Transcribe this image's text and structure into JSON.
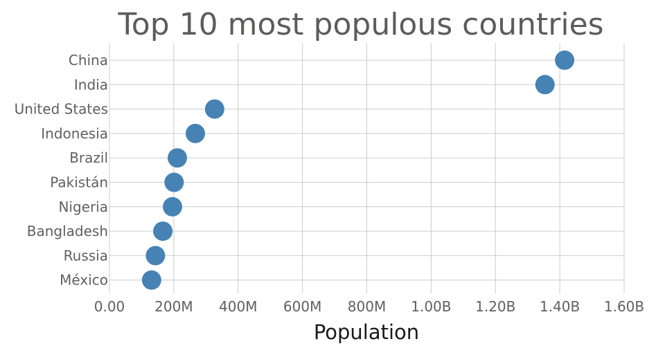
{
  "chart_data": {
    "type": "scatter",
    "title": "Top 10 most populous countries",
    "xlabel": "Population",
    "ylabel": "",
    "xlim": [
      0,
      1600000000
    ],
    "x_ticks": [
      0,
      200000000,
      400000000,
      600000000,
      800000000,
      1000000000,
      1200000000,
      1400000000,
      1600000000
    ],
    "x_tick_labels": [
      "0.00",
      "200M",
      "400M",
      "600M",
      "800M",
      "1.00B",
      "1.20B",
      "1.40B",
      "1.60B"
    ],
    "grid": true,
    "legend": "none",
    "marker_color": "#4682b4",
    "categories": [
      "China",
      "India",
      "United States",
      "Indonesia",
      "Brazil",
      "Pakistán",
      "Nigeria",
      "Bangladesh",
      "Russia",
      "México"
    ],
    "values": [
      1415000000,
      1354000000,
      327000000,
      267000000,
      211000000,
      201000000,
      196000000,
      166000000,
      143000000,
      131000000
    ]
  }
}
